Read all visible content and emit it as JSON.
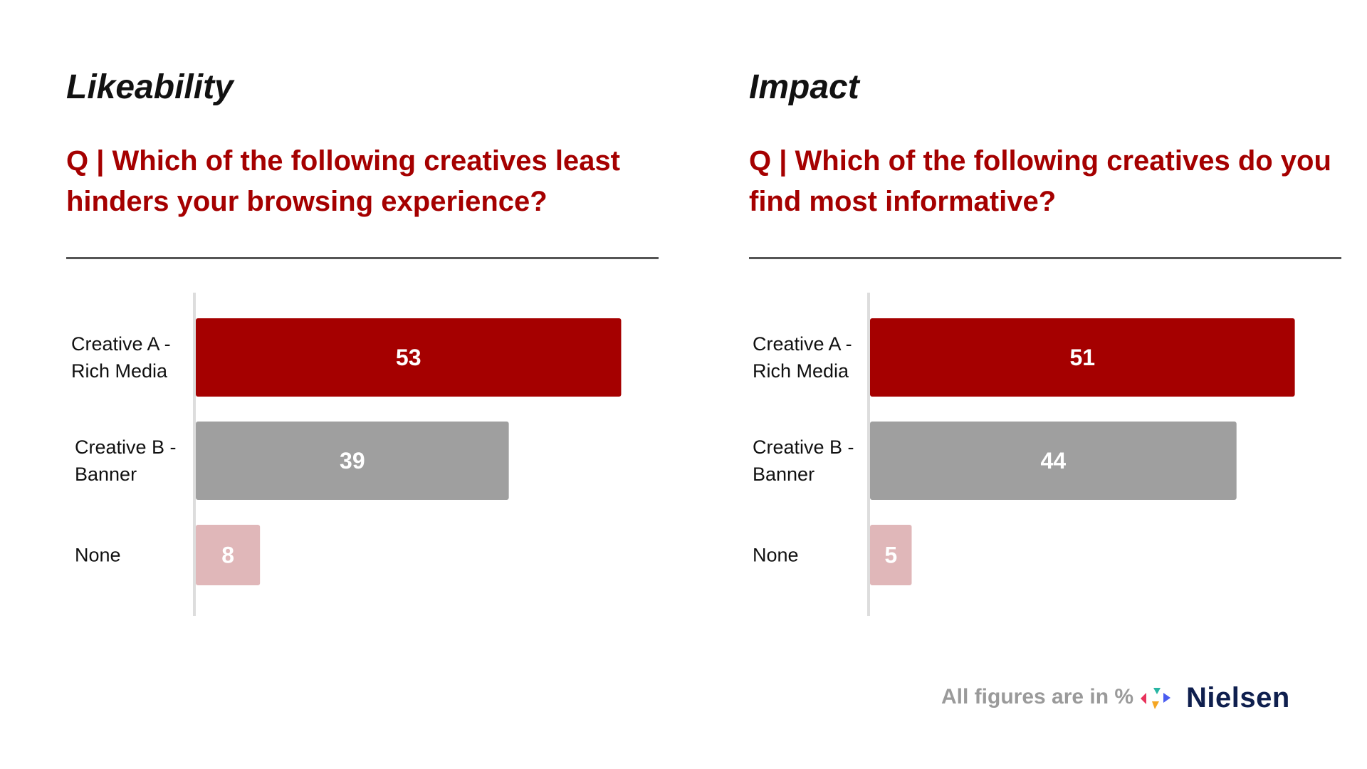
{
  "chart_data": [
    {
      "type": "bar",
      "orientation": "horizontal",
      "title": "Likeability",
      "subtitle": "Q | Which of the following creatives least hinders your browsing experience?",
      "categories": [
        "Creative A - Rich Media",
        "Creative B - Banner",
        "None"
      ],
      "category_lines": [
        [
          "Creative A -",
          "Rich Media"
        ],
        [
          "Creative B -",
          "Banner"
        ],
        [
          "None"
        ]
      ],
      "values": [
        53,
        39,
        8
      ],
      "bar_colors": [
        "#a50000",
        "#9f9f9f",
        "#e0b7b9"
      ],
      "xlim": [
        0,
        55
      ],
      "grid": false
    },
    {
      "type": "bar",
      "orientation": "horizontal",
      "title": "Impact",
      "subtitle": "Q | Which of the following creatives do you find most informative?",
      "categories": [
        "Creative A - Rich Media",
        "Creative B - Banner",
        "None"
      ],
      "category_lines": [
        [
          "Creative A -",
          "Rich Media"
        ],
        [
          "Creative B -",
          "Banner"
        ],
        [
          "None"
        ]
      ],
      "values": [
        51,
        44,
        5
      ],
      "bar_colors": [
        "#a50000",
        "#9f9f9f",
        "#e0b7b9"
      ],
      "xlim": [
        0,
        53
      ],
      "grid": false
    }
  ],
  "footer": {
    "note": "All figures are in %",
    "brand": "Nielsen"
  },
  "colors": {
    "accent": "#a50000",
    "neutral_bar": "#9f9f9f",
    "muted_bar": "#e0b7b9",
    "brand_text": "#0f1f4e"
  },
  "icons": {
    "logo": "nielsen-logo-icon"
  }
}
